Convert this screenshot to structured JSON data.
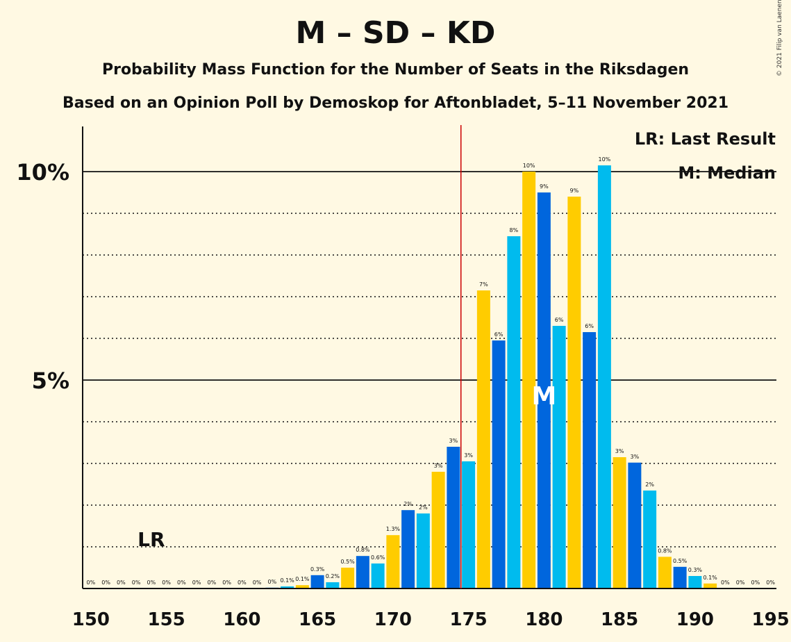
{
  "title": "M – SD – KD",
  "subtitle1": "Probability Mass Function for the Number of Seats in the Riksdagen",
  "subtitle2": "Based on an Opinion Poll by Demoskop for Aftonbladet, 5–11 November 2021",
  "copyright": "© 2021 Filip van Laenen",
  "legend": {
    "lr": "LR: Last Result",
    "median": "M: Median"
  },
  "markers": {
    "lr_label": "LR",
    "median_label": "M"
  },
  "colors": {
    "background": "#fff9e3",
    "series": [
      "#0066dd",
      "#00bbee",
      "#ffcc00"
    ],
    "majority_line": "#cc0000"
  },
  "chart_data": {
    "type": "bar",
    "x": [
      150,
      151,
      152,
      153,
      154,
      155,
      156,
      157,
      158,
      159,
      160,
      161,
      162,
      163,
      164,
      165,
      166,
      167,
      168,
      169,
      170,
      171,
      172,
      173,
      174,
      175,
      176,
      177,
      178,
      179,
      180,
      181,
      182,
      183,
      184,
      185,
      186,
      187,
      188,
      189,
      190,
      191,
      192,
      193,
      194,
      195
    ],
    "values": [
      0,
      0,
      0,
      0,
      0,
      0,
      0,
      0,
      0,
      0,
      0,
      0,
      0.02,
      0.05,
      0.08,
      0.32,
      0.15,
      0.5,
      0.78,
      0.6,
      1.28,
      1.88,
      1.8,
      2.8,
      3.4,
      3.05,
      7.15,
      5.95,
      8.45,
      10.0,
      9.5,
      6.3,
      9.4,
      6.15,
      10.15,
      3.15,
      3.02,
      2.35,
      0.76,
      0.52,
      0.3,
      0.12,
      0,
      0,
      0,
      0
    ],
    "value_labels": [
      "0%",
      "0%",
      "0%",
      "0%",
      "0%",
      "0%",
      "0%",
      "0%",
      "0%",
      "0%",
      "0%",
      "0%",
      "0%",
      "0.1%",
      "0.1%",
      "0.3%",
      "0.2%",
      "0.5%",
      "0.8%",
      "0.6%",
      "1.3%",
      "2%",
      "2%",
      "3%",
      "3%",
      "3%",
      "7%",
      "6%",
      "8%",
      "10%",
      "9%",
      "6%",
      "9%",
      "6%",
      "10%",
      "3%",
      "3%",
      "2%",
      "0.8%",
      "0.5%",
      "0.3%",
      "0.1%",
      "0%",
      "0%",
      "0%",
      "0%"
    ],
    "x_ticks": [
      150,
      155,
      160,
      165,
      170,
      175,
      180,
      185,
      190,
      195
    ],
    "y_ticks": [
      {
        "value": 5,
        "label": "5%"
      },
      {
        "value": 10,
        "label": "10%"
      }
    ],
    "y_minor_ticks": [
      1,
      2,
      3,
      4,
      6,
      7,
      8,
      9
    ],
    "xlim": [
      150,
      195
    ],
    "ylim": [
      0,
      11
    ],
    "last_result": 154,
    "median": 180,
    "majority": 175,
    "grid": "horizontal"
  }
}
